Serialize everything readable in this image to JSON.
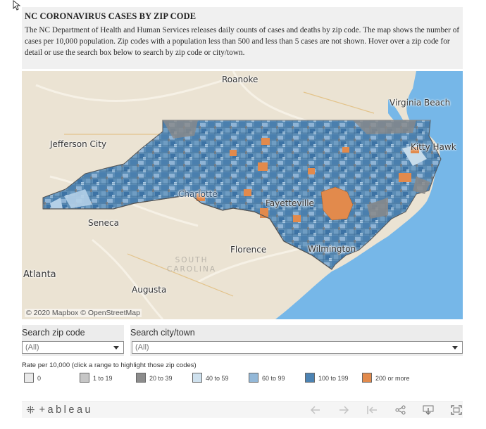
{
  "header": {
    "title": "NC CORONAVIRUS CASES BY ZIP CODE",
    "description": "The NC Department of Health and Human Services releases daily counts of cases and deaths by zip code. The map shows the number of cases per 10,000 population. Zip codes with a population less than 500 and less than 5 cases are not shown. Hover over a zip code for detail or use the search box below to search by zip code or city/town."
  },
  "map": {
    "labels": {
      "roanoke": "Roanoke",
      "virginia_beach": "Virginia Beach",
      "jefferson_city": "Jefferson City",
      "kitty_hawk": "Kitty Hawk",
      "charlotte": "Charlotte",
      "fayetteville": "Fayetteville",
      "seneca": "Seneca",
      "florence": "Florence",
      "wilmington": "Wilmington",
      "atlanta": "Atlanta",
      "augusta": "Augusta",
      "south": "SOUTH",
      "carolina": "CAROLINA"
    },
    "attribution": "© 2020 Mapbox © OpenStreetMap"
  },
  "filters": {
    "zip": {
      "title": "Search zip code",
      "value": "(All)"
    },
    "city": {
      "title": "Search city/town",
      "value": "(All)"
    }
  },
  "legend": {
    "title": "Rate per 10,000 (click a range to highlight those zip codes)",
    "items": [
      {
        "label": "0",
        "color": "#e9e9e9"
      },
      {
        "label": "1 to 19",
        "color": "#c6c6c6"
      },
      {
        "label": "20 to 39",
        "color": "#8c8c8c"
      },
      {
        "label": "40 to 59",
        "color": "#cfe1ee"
      },
      {
        "label": "60 to 99",
        "color": "#93b8d8"
      },
      {
        "label": "100 to 199",
        "color": "#4c83b3"
      },
      {
        "label": "200 or more",
        "color": "#e28a4c"
      }
    ]
  },
  "toolbar": {
    "logo_mark": "⁜",
    "logo_text": "+ableau",
    "icons": [
      "undo-icon",
      "redo-icon",
      "revert-icon",
      "share-icon",
      "download-icon",
      "fullscreen-icon"
    ]
  },
  "colors": {
    "land": "#ebe3d3",
    "water": "#76b7e8",
    "nc_fill": "#5f8fb8",
    "border": "#666666"
  }
}
